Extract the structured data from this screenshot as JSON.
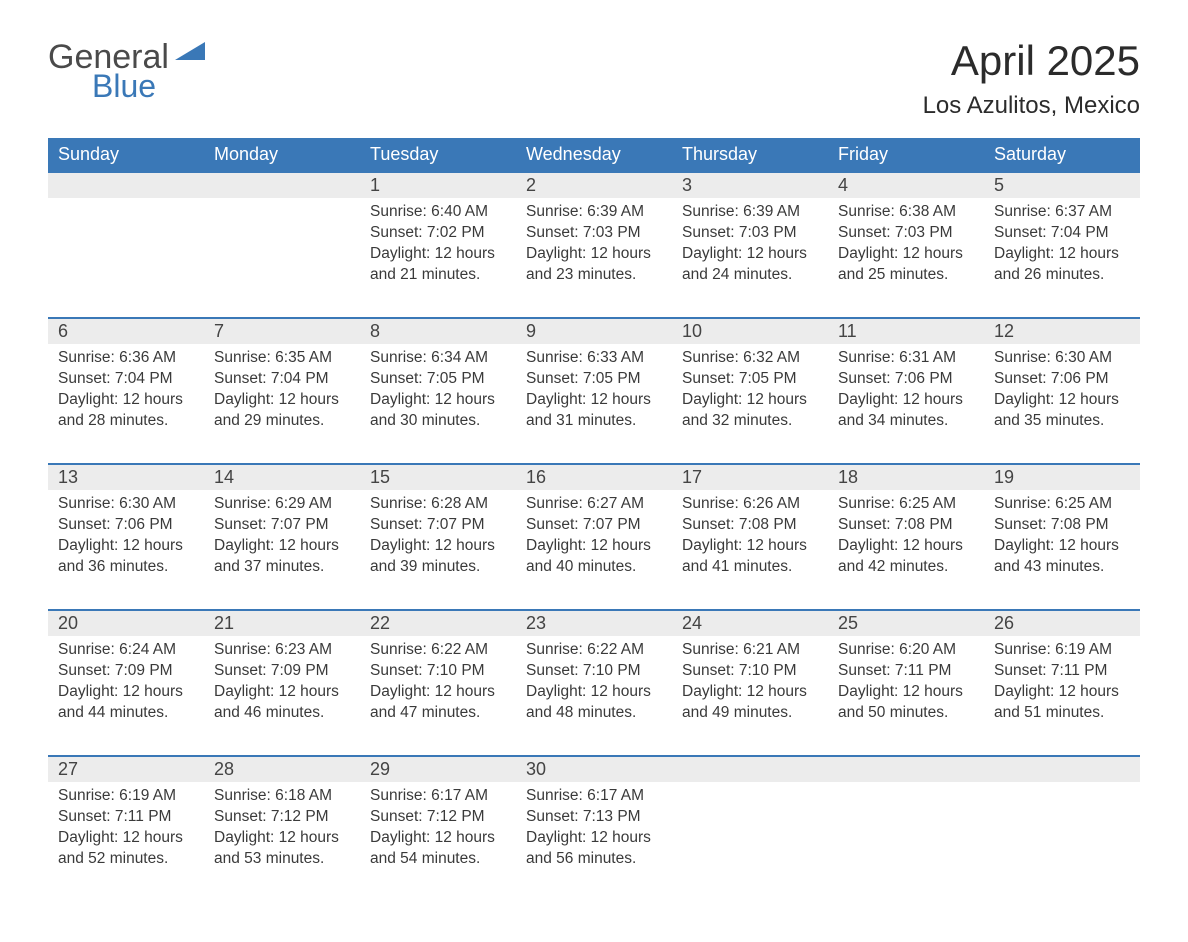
{
  "logo": {
    "word1": "General",
    "word2": "Blue"
  },
  "title": "April 2025",
  "location": "Los Azulitos, Mexico",
  "colors": {
    "header_bg": "#3a78b7",
    "header_text": "#ffffff",
    "daynum_bg": "#ececec",
    "border_top": "#3a78b7",
    "body_text": "#3a3a3a",
    "logo_gray": "#4a4a4a",
    "logo_blue": "#3a78b7"
  },
  "weekdays": [
    "Sunday",
    "Monday",
    "Tuesday",
    "Wednesday",
    "Thursday",
    "Friday",
    "Saturday"
  ],
  "weeks": [
    [
      {
        "n": "",
        "t": ""
      },
      {
        "n": "",
        "t": ""
      },
      {
        "n": "1",
        "t": "Sunrise: 6:40 AM\nSunset: 7:02 PM\nDaylight: 12 hours and 21 minutes."
      },
      {
        "n": "2",
        "t": "Sunrise: 6:39 AM\nSunset: 7:03 PM\nDaylight: 12 hours and 23 minutes."
      },
      {
        "n": "3",
        "t": "Sunrise: 6:39 AM\nSunset: 7:03 PM\nDaylight: 12 hours and 24 minutes."
      },
      {
        "n": "4",
        "t": "Sunrise: 6:38 AM\nSunset: 7:03 PM\nDaylight: 12 hours and 25 minutes."
      },
      {
        "n": "5",
        "t": "Sunrise: 6:37 AM\nSunset: 7:04 PM\nDaylight: 12 hours and 26 minutes."
      }
    ],
    [
      {
        "n": "6",
        "t": "Sunrise: 6:36 AM\nSunset: 7:04 PM\nDaylight: 12 hours and 28 minutes."
      },
      {
        "n": "7",
        "t": "Sunrise: 6:35 AM\nSunset: 7:04 PM\nDaylight: 12 hours and 29 minutes."
      },
      {
        "n": "8",
        "t": "Sunrise: 6:34 AM\nSunset: 7:05 PM\nDaylight: 12 hours and 30 minutes."
      },
      {
        "n": "9",
        "t": "Sunrise: 6:33 AM\nSunset: 7:05 PM\nDaylight: 12 hours and 31 minutes."
      },
      {
        "n": "10",
        "t": "Sunrise: 6:32 AM\nSunset: 7:05 PM\nDaylight: 12 hours and 32 minutes."
      },
      {
        "n": "11",
        "t": "Sunrise: 6:31 AM\nSunset: 7:06 PM\nDaylight: 12 hours and 34 minutes."
      },
      {
        "n": "12",
        "t": "Sunrise: 6:30 AM\nSunset: 7:06 PM\nDaylight: 12 hours and 35 minutes."
      }
    ],
    [
      {
        "n": "13",
        "t": "Sunrise: 6:30 AM\nSunset: 7:06 PM\nDaylight: 12 hours and 36 minutes."
      },
      {
        "n": "14",
        "t": "Sunrise: 6:29 AM\nSunset: 7:07 PM\nDaylight: 12 hours and 37 minutes."
      },
      {
        "n": "15",
        "t": "Sunrise: 6:28 AM\nSunset: 7:07 PM\nDaylight: 12 hours and 39 minutes."
      },
      {
        "n": "16",
        "t": "Sunrise: 6:27 AM\nSunset: 7:07 PM\nDaylight: 12 hours and 40 minutes."
      },
      {
        "n": "17",
        "t": "Sunrise: 6:26 AM\nSunset: 7:08 PM\nDaylight: 12 hours and 41 minutes."
      },
      {
        "n": "18",
        "t": "Sunrise: 6:25 AM\nSunset: 7:08 PM\nDaylight: 12 hours and 42 minutes."
      },
      {
        "n": "19",
        "t": "Sunrise: 6:25 AM\nSunset: 7:08 PM\nDaylight: 12 hours and 43 minutes."
      }
    ],
    [
      {
        "n": "20",
        "t": "Sunrise: 6:24 AM\nSunset: 7:09 PM\nDaylight: 12 hours and 44 minutes."
      },
      {
        "n": "21",
        "t": "Sunrise: 6:23 AM\nSunset: 7:09 PM\nDaylight: 12 hours and 46 minutes."
      },
      {
        "n": "22",
        "t": "Sunrise: 6:22 AM\nSunset: 7:10 PM\nDaylight: 12 hours and 47 minutes."
      },
      {
        "n": "23",
        "t": "Sunrise: 6:22 AM\nSunset: 7:10 PM\nDaylight: 12 hours and 48 minutes."
      },
      {
        "n": "24",
        "t": "Sunrise: 6:21 AM\nSunset: 7:10 PM\nDaylight: 12 hours and 49 minutes."
      },
      {
        "n": "25",
        "t": "Sunrise: 6:20 AM\nSunset: 7:11 PM\nDaylight: 12 hours and 50 minutes."
      },
      {
        "n": "26",
        "t": "Sunrise: 6:19 AM\nSunset: 7:11 PM\nDaylight: 12 hours and 51 minutes."
      }
    ],
    [
      {
        "n": "27",
        "t": "Sunrise: 6:19 AM\nSunset: 7:11 PM\nDaylight: 12 hours and 52 minutes."
      },
      {
        "n": "28",
        "t": "Sunrise: 6:18 AM\nSunset: 7:12 PM\nDaylight: 12 hours and 53 minutes."
      },
      {
        "n": "29",
        "t": "Sunrise: 6:17 AM\nSunset: 7:12 PM\nDaylight: 12 hours and 54 minutes."
      },
      {
        "n": "30",
        "t": "Sunrise: 6:17 AM\nSunset: 7:13 PM\nDaylight: 12 hours and 56 minutes."
      },
      {
        "n": "",
        "t": ""
      },
      {
        "n": "",
        "t": ""
      },
      {
        "n": "",
        "t": ""
      }
    ]
  ]
}
